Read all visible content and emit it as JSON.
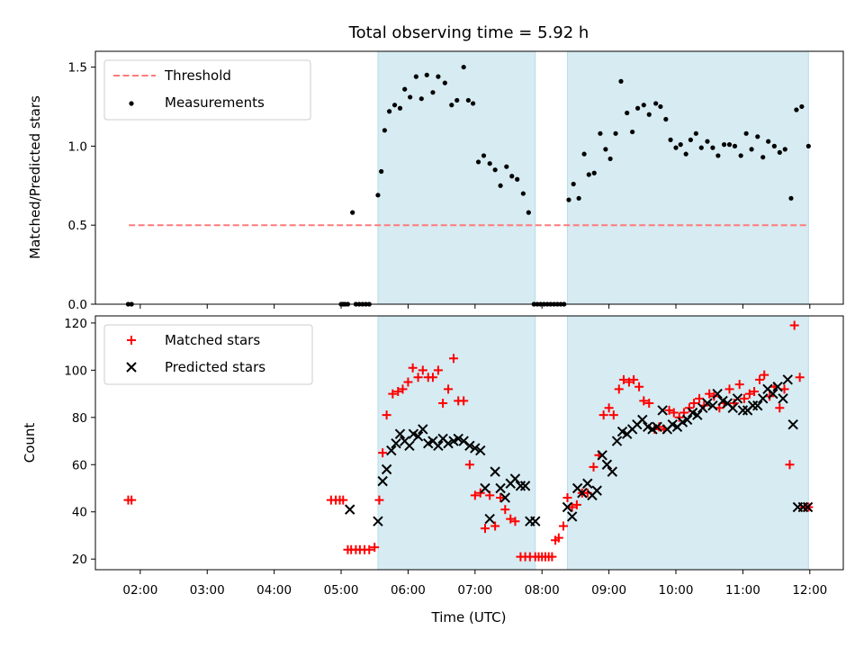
{
  "chart_data": [
    {
      "type": "scatter",
      "title": "Total observing time = 5.92 h",
      "xlabel": "",
      "ylabel": "Matched/Predicted stars",
      "xlim": [
        1.33,
        12.5
      ],
      "ylim": [
        0,
        1.6
      ],
      "yticks": [
        {
          "value": 0.0,
          "label": "0.0"
        },
        {
          "value": 0.5,
          "label": "0.5"
        },
        {
          "value": 1.0,
          "label": "1.0"
        },
        {
          "value": 1.5,
          "label": "1.5"
        }
      ],
      "shaded_regions": [
        {
          "x": [
            5.55,
            7.9
          ],
          "color": "#add8e6"
        },
        {
          "x": [
            8.38,
            11.98
          ],
          "color": "#add8e6"
        }
      ],
      "threshold": {
        "name": "Threshold",
        "value": 0.5,
        "x": [
          1.83,
          11.98
        ],
        "color": "#ff7a7a"
      },
      "series": [
        {
          "name": "Measurements",
          "color": "#000000",
          "marker": "dot",
          "x": [
            1.82,
            1.87,
            5.0,
            5.03,
            5.06,
            5.1,
            5.17,
            5.22,
            5.27,
            5.32,
            5.37,
            5.42,
            5.55,
            5.6,
            5.65,
            5.72,
            5.8,
            5.88,
            5.95,
            6.03,
            6.12,
            6.2,
            6.28,
            6.37,
            6.45,
            6.55,
            6.65,
            6.73,
            6.83,
            6.9,
            6.97,
            7.05,
            7.13,
            7.22,
            7.3,
            7.38,
            7.47,
            7.55,
            7.63,
            7.72,
            7.8,
            7.88,
            7.93,
            7.98,
            8.03,
            8.08,
            8.13,
            8.18,
            8.23,
            8.28,
            8.33,
            8.4,
            8.47,
            8.55,
            8.63,
            8.7,
            8.78,
            8.87,
            8.95,
            9.02,
            9.1,
            9.18,
            9.27,
            9.35,
            9.43,
            9.52,
            9.6,
            9.7,
            9.77,
            9.85,
            9.92,
            10.0,
            10.07,
            10.15,
            10.22,
            10.3,
            10.38,
            10.47,
            10.55,
            10.63,
            10.72,
            10.8,
            10.88,
            10.97,
            11.05,
            11.13,
            11.22,
            11.3,
            11.38,
            11.47,
            11.55,
            11.63,
            11.72,
            11.8,
            11.88,
            11.98
          ],
          "y": [
            0.0,
            0.0,
            0.0,
            0.0,
            0.0,
            0.0,
            0.58,
            0.0,
            0.0,
            0.0,
            0.0,
            0.0,
            0.69,
            0.84,
            1.1,
            1.22,
            1.26,
            1.24,
            1.36,
            1.31,
            1.44,
            1.3,
            1.45,
            1.34,
            1.44,
            1.4,
            1.26,
            1.29,
            1.5,
            1.29,
            1.27,
            0.9,
            0.94,
            0.89,
            0.85,
            0.75,
            0.87,
            0.81,
            0.79,
            0.7,
            0.58,
            0.0,
            0.0,
            0.0,
            0.0,
            0.0,
            0.0,
            0.0,
            0.0,
            0.0,
            0.0,
            0.66,
            0.76,
            0.67,
            0.95,
            0.82,
            0.83,
            1.08,
            0.98,
            0.92,
            1.08,
            1.41,
            1.21,
            1.09,
            1.24,
            1.26,
            1.2,
            1.27,
            1.25,
            1.17,
            1.04,
            0.99,
            1.01,
            0.95,
            1.04,
            1.08,
            0.99,
            1.03,
            0.99,
            0.94,
            1.01,
            1.01,
            1.0,
            0.94,
            1.08,
            0.98,
            1.06,
            0.93,
            1.03,
            1.0,
            0.96,
            0.98,
            0.67,
            1.23,
            1.25,
            1.0
          ]
        }
      ],
      "legend": {
        "position": "upper left",
        "entries": [
          "Threshold",
          "Measurements"
        ]
      }
    },
    {
      "type": "scatter",
      "title": "",
      "xlabel": "Time (UTC)",
      "ylabel": "Count",
      "xlim": [
        1.33,
        12.5
      ],
      "ylim": [
        15.5,
        123
      ],
      "xticks": [
        {
          "value": 2,
          "label": "02:00"
        },
        {
          "value": 3,
          "label": "03:00"
        },
        {
          "value": 4,
          "label": "04:00"
        },
        {
          "value": 5,
          "label": "05:00"
        },
        {
          "value": 6,
          "label": "06:00"
        },
        {
          "value": 7,
          "label": "07:00"
        },
        {
          "value": 8,
          "label": "08:00"
        },
        {
          "value": 9,
          "label": "09:00"
        },
        {
          "value": 10,
          "label": "10:00"
        },
        {
          "value": 11,
          "label": "11:00"
        },
        {
          "value": 12,
          "label": "12:00"
        }
      ],
      "yticks": [
        {
          "value": 20,
          "label": "20"
        },
        {
          "value": 40,
          "label": "40"
        },
        {
          "value": 60,
          "label": "60"
        },
        {
          "value": 80,
          "label": "80"
        },
        {
          "value": 100,
          "label": "100"
        },
        {
          "value": 120,
          "label": "120"
        }
      ],
      "shaded_regions": [
        {
          "x": [
            5.55,
            7.9
          ],
          "color": "#add8e6"
        },
        {
          "x": [
            8.38,
            11.98
          ],
          "color": "#add8e6"
        }
      ],
      "series": [
        {
          "name": "Matched stars",
          "color": "#ff0000",
          "marker": "plus",
          "x": [
            1.82,
            1.87,
            4.85,
            4.92,
            4.98,
            5.03,
            5.1,
            5.15,
            5.22,
            5.28,
            5.35,
            5.42,
            5.5,
            5.57,
            5.62,
            5.68,
            5.77,
            5.85,
            5.92,
            6.0,
            6.07,
            6.15,
            6.22,
            6.3,
            6.37,
            6.45,
            6.52,
            6.6,
            6.68,
            6.75,
            6.83,
            6.92,
            7.0,
            7.08,
            7.15,
            7.22,
            7.3,
            7.38,
            7.45,
            7.53,
            7.6,
            7.68,
            7.75,
            7.82,
            7.9,
            7.95,
            8.0,
            8.05,
            8.1,
            8.15,
            8.2,
            8.25,
            8.32,
            8.38,
            8.45,
            8.52,
            8.6,
            8.68,
            8.77,
            8.85,
            8.92,
            9.0,
            9.07,
            9.15,
            9.22,
            9.3,
            9.37,
            9.45,
            9.52,
            9.6,
            9.68,
            9.75,
            9.82,
            9.9,
            9.97,
            10.05,
            10.12,
            10.2,
            10.27,
            10.35,
            10.42,
            10.5,
            10.57,
            10.65,
            10.72,
            10.8,
            10.87,
            10.95,
            11.02,
            11.1,
            11.17,
            11.25,
            11.32,
            11.4,
            11.47,
            11.55,
            11.62,
            11.7,
            11.77,
            11.85,
            11.92,
            11.98
          ],
          "y": [
            45,
            45,
            45,
            45,
            45,
            45,
            24,
            24,
            24,
            24,
            24,
            24,
            25,
            45,
            65,
            81,
            90,
            91,
            92,
            95,
            101,
            97,
            100,
            97,
            97,
            100,
            86,
            92,
            105,
            87,
            87,
            60,
            47,
            48,
            33,
            47,
            34,
            46,
            41,
            37,
            36,
            21,
            21,
            21,
            21,
            21,
            21,
            21,
            21,
            21,
            28,
            29,
            34,
            46,
            42,
            43,
            48,
            48,
            59,
            64,
            81,
            84,
            81,
            92,
            96,
            95,
            96,
            93,
            87,
            86,
            75,
            76,
            75,
            83,
            82,
            80,
            82,
            84,
            86,
            88,
            85,
            90,
            89,
            84,
            86,
            92,
            86,
            94,
            88,
            90,
            91,
            96,
            98,
            89,
            93,
            84,
            92,
            60,
            119,
            97,
            42,
            42
          ]
        },
        {
          "name": "Predicted stars",
          "color": "#000000",
          "marker": "x",
          "x": [
            5.13,
            5.55,
            5.62,
            5.68,
            5.75,
            5.82,
            5.88,
            5.95,
            6.02,
            6.08,
            6.15,
            6.22,
            6.3,
            6.37,
            6.45,
            6.52,
            6.6,
            6.68,
            6.75,
            6.83,
            6.92,
            7.0,
            7.08,
            7.15,
            7.22,
            7.3,
            7.38,
            7.45,
            7.53,
            7.6,
            7.68,
            7.75,
            7.82,
            7.9,
            8.38,
            8.45,
            8.53,
            8.6,
            8.68,
            8.75,
            8.82,
            8.9,
            8.97,
            9.05,
            9.12,
            9.2,
            9.27,
            9.35,
            9.42,
            9.5,
            9.58,
            9.65,
            9.72,
            9.8,
            9.87,
            9.95,
            10.02,
            10.1,
            10.17,
            10.25,
            10.32,
            10.4,
            10.47,
            10.55,
            10.62,
            10.7,
            10.77,
            10.85,
            10.92,
            11.0,
            11.07,
            11.15,
            11.22,
            11.3,
            11.37,
            11.45,
            11.52,
            11.6,
            11.67,
            11.75,
            11.82,
            11.9,
            11.97
          ],
          "y": [
            41,
            36,
            53,
            58,
            66,
            69,
            73,
            70,
            68,
            73,
            72,
            75,
            69,
            70,
            68,
            71,
            69,
            70,
            71,
            70,
            68,
            67,
            66,
            50,
            37,
            57,
            50,
            46,
            52,
            54,
            51,
            51,
            36,
            36,
            42,
            38,
            50,
            48,
            52,
            47,
            49,
            64,
            60,
            57,
            70,
            74,
            73,
            75,
            77,
            79,
            76,
            75,
            76,
            83,
            75,
            77,
            76,
            78,
            79,
            82,
            81,
            84,
            86,
            85,
            90,
            87,
            86,
            84,
            88,
            83,
            83,
            85,
            85,
            88,
            92,
            90,
            93,
            88,
            96,
            77,
            42,
            42,
            42
          ]
        }
      ],
      "legend": {
        "position": "upper left",
        "entries": [
          "Matched stars",
          "Predicted stars"
        ]
      }
    }
  ]
}
